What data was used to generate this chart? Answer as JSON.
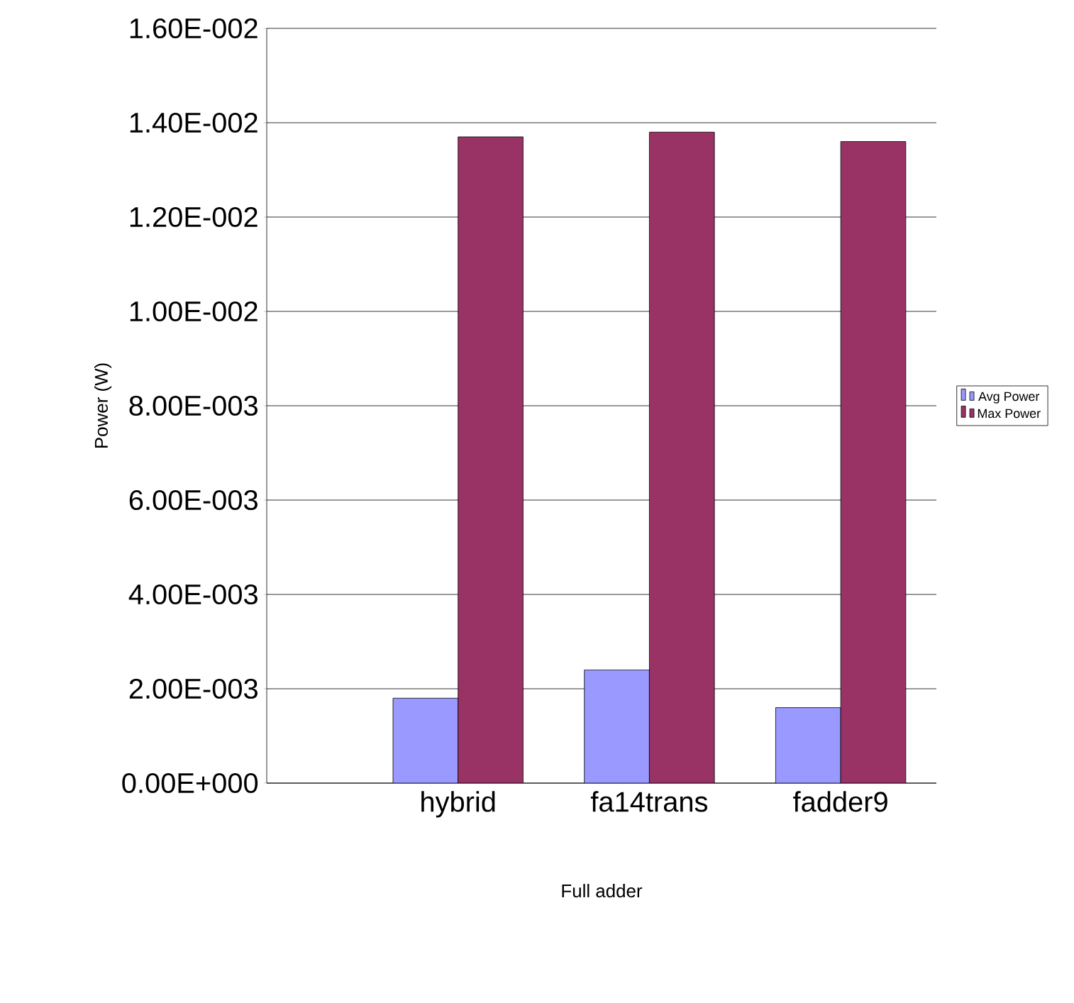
{
  "chart_data": {
    "type": "bar",
    "xlabel": "Full adder",
    "ylabel": "Power (W)",
    "categories": [
      "hybrid",
      "fa14trans",
      "fadder9"
    ],
    "series": [
      {
        "name": "Avg Power",
        "color": "#9999ff",
        "values": [
          0.0018,
          0.0024,
          0.0016
        ]
      },
      {
        "name": "Max Power",
        "color": "#993366",
        "values": [
          0.0137,
          0.0138,
          0.0136
        ]
      }
    ],
    "ylim": [
      0,
      0.016
    ],
    "yticks": [
      {
        "value": 0,
        "label": "0.00E+000"
      },
      {
        "value": 0.002,
        "label": "2.00E-003"
      },
      {
        "value": 0.004,
        "label": "4.00E-003"
      },
      {
        "value": 0.006,
        "label": "6.00E-003"
      },
      {
        "value": 0.008,
        "label": "8.00E-003"
      },
      {
        "value": 0.01,
        "label": "1.00E-002"
      },
      {
        "value": 0.012,
        "label": "1.20E-002"
      },
      {
        "value": 0.014,
        "label": "1.40E-002"
      },
      {
        "value": 0.016,
        "label": "1.60E-002"
      }
    ],
    "grid": "y",
    "legend": "right"
  }
}
